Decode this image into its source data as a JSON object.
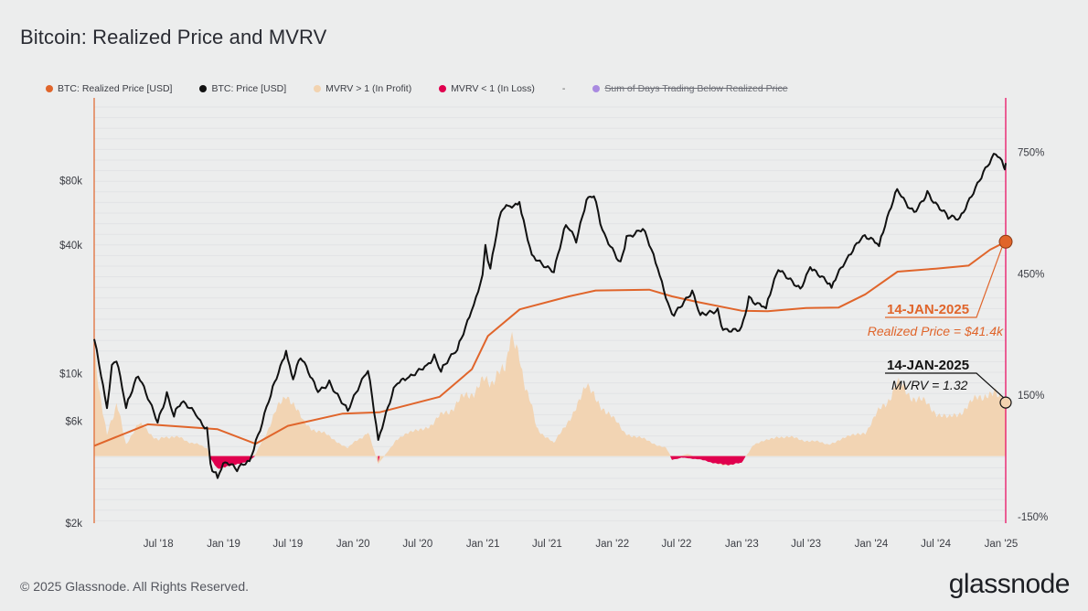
{
  "page": {
    "title": "Bitcoin: Realized Price and MVRV",
    "copyright": "© 2025 Glassnode. All Rights Reserved.",
    "brand": "glassnode"
  },
  "legend": [
    {
      "label": "BTC: Realized Price [USD]",
      "color": "#e0652b",
      "enabled": true
    },
    {
      "label": "BTC: Price [USD]",
      "color": "#111111",
      "enabled": true
    },
    {
      "label": "MVRV > 1 (In Profit)",
      "color": "#f2d3b0",
      "enabled": true
    },
    {
      "label": "MVRV < 1 (In Loss)",
      "color": "#e0004e",
      "enabled": true
    },
    {
      "label": "-",
      "color": "",
      "enabled": true
    },
    {
      "label": "Sum of Days Trading Below Realized Price",
      "color": "#a98ae0",
      "enabled": false
    }
  ],
  "chart_data": {
    "type": "line",
    "x_ticks": [
      "Jul '18",
      "Jan '19",
      "Jul '19",
      "Jan '20",
      "Jul '20",
      "Jan '21",
      "Jul '21",
      "Jan '22",
      "Jul '22",
      "Jan '23",
      "Jul '23",
      "Jan '24",
      "Jul '24",
      "Jan '25"
    ],
    "x_range": [
      "2018-01-01",
      "2025-01-14"
    ],
    "y_left": {
      "scale": "log",
      "ticks": [
        "$2k",
        "$6k",
        "$10k",
        "$40k",
        "$80k"
      ],
      "tick_values": [
        2000,
        6000,
        10000,
        40000,
        80000
      ],
      "range": [
        2000,
        160000
      ]
    },
    "y_right": {
      "ticks": [
        "-150%",
        "150%",
        "450%",
        "750%"
      ],
      "tick_values": [
        -150,
        150,
        450,
        750
      ],
      "range": [
        -150,
        900
      ]
    },
    "series": [
      {
        "name": "BTC: Price [USD]",
        "color": "#111111",
        "axis": "left",
        "points": [
          [
            "2018-01-01",
            14500
          ],
          [
            "2018-01-15",
            11000
          ],
          [
            "2018-02-06",
            6900
          ],
          [
            "2018-02-20",
            11000
          ],
          [
            "2018-03-05",
            11400
          ],
          [
            "2018-04-01",
            6900
          ],
          [
            "2018-05-05",
            9700
          ],
          [
            "2018-06-29",
            5900
          ],
          [
            "2018-07-25",
            8200
          ],
          [
            "2018-08-14",
            6300
          ],
          [
            "2018-09-04",
            7300
          ],
          [
            "2018-10-15",
            6400
          ],
          [
            "2018-11-15",
            5600
          ],
          [
            "2018-11-25",
            3800
          ],
          [
            "2018-12-15",
            3250
          ],
          [
            "2019-01-05",
            3850
          ],
          [
            "2019-02-08",
            3500
          ],
          [
            "2019-03-15",
            3900
          ],
          [
            "2019-04-02",
            4900
          ],
          [
            "2019-05-14",
            7900
          ],
          [
            "2019-06-26",
            12800
          ],
          [
            "2019-07-16",
            9400
          ],
          [
            "2019-08-06",
            11800
          ],
          [
            "2019-09-24",
            8200
          ],
          [
            "2019-10-26",
            9300
          ],
          [
            "2019-12-17",
            6700
          ],
          [
            "2020-02-12",
            10300
          ],
          [
            "2020-03-12",
            4900
          ],
          [
            "2020-04-30",
            8800
          ],
          [
            "2020-06-01",
            9500
          ],
          [
            "2020-07-27",
            11000
          ],
          [
            "2020-08-17",
            12300
          ],
          [
            "2020-09-05",
            10200
          ],
          [
            "2020-10-21",
            12900
          ],
          [
            "2020-11-30",
            19700
          ],
          [
            "2020-12-31",
            29000
          ],
          [
            "2021-01-08",
            40000
          ],
          [
            "2021-01-22",
            31000
          ],
          [
            "2021-02-21",
            57000
          ],
          [
            "2021-03-13",
            61000
          ],
          [
            "2021-04-14",
            63500
          ],
          [
            "2021-05-19",
            36000
          ],
          [
            "2021-06-22",
            31500
          ],
          [
            "2021-07-20",
            29800
          ],
          [
            "2021-08-23",
            49500
          ],
          [
            "2021-09-21",
            41000
          ],
          [
            "2021-10-20",
            65000
          ],
          [
            "2021-11-10",
            67500
          ],
          [
            "2021-12-04",
            47000
          ],
          [
            "2022-01-24",
            33500
          ],
          [
            "2022-02-10",
            44000
          ],
          [
            "2022-03-28",
            47500
          ],
          [
            "2022-05-09",
            31000
          ],
          [
            "2022-06-18",
            19000
          ],
          [
            "2022-08-14",
            24500
          ],
          [
            "2022-09-06",
            18800
          ],
          [
            "2022-10-25",
            20200
          ],
          [
            "2022-11-09",
            16000
          ],
          [
            "2022-12-31",
            16600
          ],
          [
            "2023-01-21",
            23000
          ],
          [
            "2023-03-10",
            20200
          ],
          [
            "2023-04-14",
            30500
          ],
          [
            "2023-06-15",
            25000
          ],
          [
            "2023-07-13",
            31500
          ],
          [
            "2023-09-11",
            25200
          ],
          [
            "2023-10-24",
            34500
          ],
          [
            "2023-12-08",
            44000
          ],
          [
            "2024-01-23",
            39500
          ],
          [
            "2024-03-14",
            73000
          ],
          [
            "2024-05-01",
            57000
          ],
          [
            "2024-06-07",
            71500
          ],
          [
            "2024-08-05",
            53000
          ],
          [
            "2024-09-06",
            53500
          ],
          [
            "2024-11-12",
            88000
          ],
          [
            "2024-12-17",
            106000
          ],
          [
            "2025-01-09",
            92000
          ],
          [
            "2025-01-14",
            96500
          ]
        ]
      },
      {
        "name": "BTC: Realized Price [USD]",
        "color": "#e0652b",
        "axis": "left",
        "points": [
          [
            "2018-01-01",
            4600
          ],
          [
            "2018-06-01",
            5800
          ],
          [
            "2018-12-15",
            5500
          ],
          [
            "2019-04-01",
            4700
          ],
          [
            "2019-07-01",
            5700
          ],
          [
            "2019-12-01",
            6500
          ],
          [
            "2020-03-15",
            6600
          ],
          [
            "2020-09-01",
            7800
          ],
          [
            "2020-12-01",
            10500
          ],
          [
            "2021-01-15",
            15000
          ],
          [
            "2021-04-15",
            20000
          ],
          [
            "2021-09-01",
            23000
          ],
          [
            "2021-11-15",
            24500
          ],
          [
            "2022-04-15",
            24700
          ],
          [
            "2022-06-18",
            23000
          ],
          [
            "2022-09-01",
            21600
          ],
          [
            "2022-12-31",
            19700
          ],
          [
            "2023-03-15",
            19600
          ],
          [
            "2023-07-01",
            20300
          ],
          [
            "2023-10-01",
            20400
          ],
          [
            "2023-12-15",
            23500
          ],
          [
            "2024-03-15",
            30000
          ],
          [
            "2024-07-01",
            31000
          ],
          [
            "2024-10-01",
            32000
          ],
          [
            "2024-12-01",
            38000
          ],
          [
            "2025-01-14",
            41400
          ]
        ]
      },
      {
        "name": "MVRV > 1 (In Profit)",
        "color": "#f2d3b0",
        "axis": "right",
        "type": "area",
        "points": [
          [
            "2018-01-01",
            250
          ],
          [
            "2018-02-06",
            50
          ],
          [
            "2018-03-05",
            130
          ],
          [
            "2018-04-01",
            30
          ],
          [
            "2018-05-05",
            80
          ],
          [
            "2018-07-01",
            40
          ],
          [
            "2018-08-10",
            50
          ],
          [
            "2018-11-15",
            20
          ],
          [
            "2018-11-25",
            -5
          ],
          [
            "2019-03-01",
            -15
          ],
          [
            "2019-04-02",
            5
          ],
          [
            "2019-06-26",
            160
          ],
          [
            "2019-08-15",
            80
          ],
          [
            "2019-11-01",
            45
          ],
          [
            "2019-12-17",
            20
          ],
          [
            "2020-02-12",
            60
          ],
          [
            "2020-03-12",
            -20
          ],
          [
            "2020-05-01",
            40
          ],
          [
            "2020-08-10",
            80
          ],
          [
            "2020-12-31",
            180
          ],
          [
            "2021-02-21",
            200
          ],
          [
            "2021-03-20",
            280
          ],
          [
            "2021-04-14",
            240
          ],
          [
            "2021-06-01",
            70
          ],
          [
            "2021-07-20",
            30
          ],
          [
            "2021-10-20",
            165
          ],
          [
            "2021-11-10",
            150
          ],
          [
            "2022-02-01",
            60
          ],
          [
            "2022-06-01",
            20
          ],
          [
            "2022-06-18",
            -5
          ],
          [
            "2022-08-01",
            5
          ],
          [
            "2022-11-09",
            -25
          ],
          [
            "2023-01-01",
            -15
          ],
          [
            "2023-02-01",
            25
          ],
          [
            "2023-04-14",
            50
          ],
          [
            "2023-09-01",
            30
          ],
          [
            "2023-12-15",
            60
          ],
          [
            "2024-03-14",
            175
          ],
          [
            "2024-08-05",
            90
          ],
          [
            "2024-11-12",
            150
          ],
          [
            "2024-12-17",
            170
          ],
          [
            "2025-01-14",
            132
          ]
        ]
      },
      {
        "name": "MVRV < 1 (In Loss)",
        "color": "#e0004e",
        "axis": "right",
        "type": "area",
        "points": [
          [
            "2018-11-20",
            0
          ],
          [
            "2018-12-15",
            -30
          ],
          [
            "2019-02-08",
            -22
          ],
          [
            "2019-03-20",
            -8
          ],
          [
            "2019-03-31",
            0
          ],
          [
            "2020-03-11",
            0
          ],
          [
            "2020-03-12",
            -15
          ],
          [
            "2020-03-16",
            0
          ],
          [
            "2022-06-13",
            0
          ],
          [
            "2022-06-18",
            -10
          ],
          [
            "2022-07-15",
            -4
          ],
          [
            "2022-09-01",
            -8
          ],
          [
            "2022-11-09",
            -22
          ],
          [
            "2022-12-31",
            -18
          ],
          [
            "2023-01-12",
            0
          ]
        ]
      }
    ],
    "annotations": [
      {
        "date": "14-JAN-2025",
        "label": "Realized Price = $41.4k",
        "series": "BTC: Realized Price [USD]",
        "color": "#e0652b"
      },
      {
        "date": "14-JAN-2025",
        "label": "MVRV = 1.32",
        "series": "MVRV",
        "color": "#111111"
      }
    ],
    "grid": true,
    "legend_position": "top-left"
  }
}
